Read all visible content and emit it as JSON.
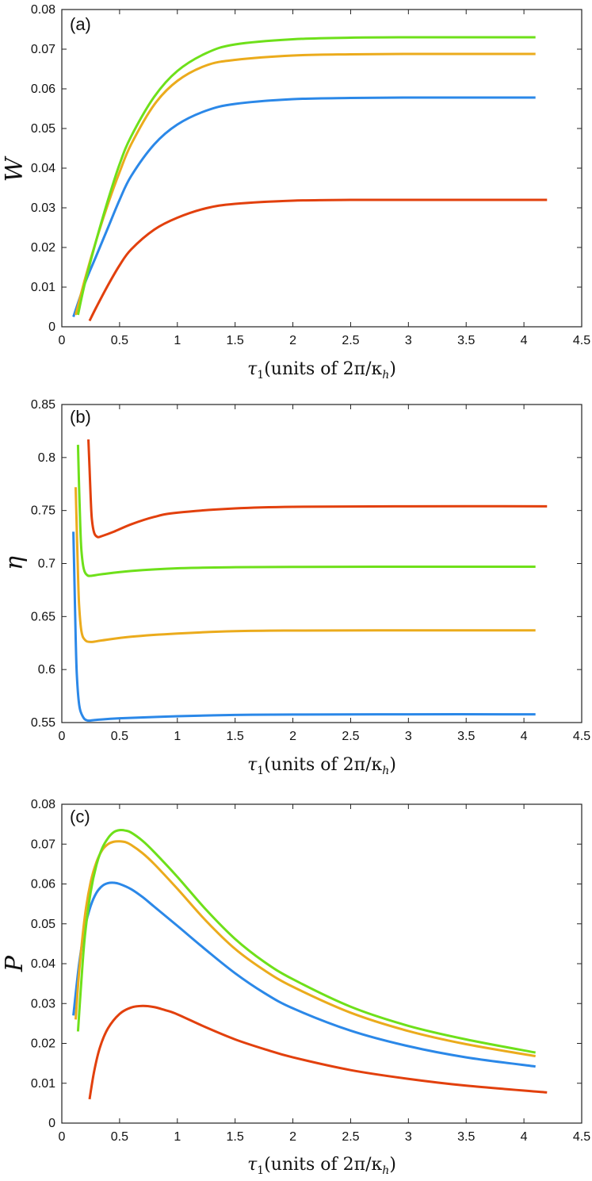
{
  "x_axis_label": {
    "prefix": "τ",
    "subscript": "1",
    "middle": "(units of 2π/κ",
    "sub_h": "h",
    "suffix": ")"
  },
  "colors": {
    "blue": "#2b88e8",
    "orange": "#ebab1c",
    "green": "#6ee01a",
    "red": "#e2400d",
    "axis": "#222222"
  },
  "chart_data": [
    {
      "type": "line",
      "panel_label": "(a)",
      "ylabel": "W",
      "xlim": [
        0,
        4.5
      ],
      "ylim": [
        0,
        0.08
      ],
      "xticks": [
        "0",
        "0.5",
        "1",
        "1.5",
        "2",
        "2.5",
        "3",
        "3.5",
        "4",
        "4.5"
      ],
      "yticks": [
        "0",
        "0.01",
        "0.02",
        "0.03",
        "0.04",
        "0.05",
        "0.06",
        "0.07",
        "0.08"
      ],
      "series": [
        {
          "color": "blue",
          "x": [
            0.1,
            0.2,
            0.3,
            0.4,
            0.5,
            0.6,
            0.8,
            1.0,
            1.25,
            1.5,
            2.0,
            2.5,
            3.0,
            3.5,
            4.1
          ],
          "y": [
            0.0025,
            0.011,
            0.018,
            0.025,
            0.032,
            0.038,
            0.046,
            0.051,
            0.0545,
            0.0562,
            0.0574,
            0.0577,
            0.0578,
            0.0578,
            0.0578
          ]
        },
        {
          "color": "orange",
          "x": [
            0.12,
            0.2,
            0.3,
            0.4,
            0.5,
            0.6,
            0.8,
            1.0,
            1.25,
            1.5,
            2.0,
            2.5,
            3.0,
            3.5,
            4.1
          ],
          "y": [
            0.003,
            0.012,
            0.022,
            0.031,
            0.039,
            0.046,
            0.056,
            0.062,
            0.0659,
            0.0673,
            0.0684,
            0.0687,
            0.0688,
            0.0688,
            0.0688
          ]
        },
        {
          "color": "green",
          "x": [
            0.14,
            0.2,
            0.3,
            0.4,
            0.5,
            0.6,
            0.8,
            1.0,
            1.25,
            1.5,
            2.0,
            2.5,
            3.0,
            3.5,
            4.1
          ],
          "y": [
            0.003,
            0.011,
            0.022,
            0.032,
            0.041,
            0.048,
            0.058,
            0.0645,
            0.069,
            0.0712,
            0.0725,
            0.0729,
            0.073,
            0.073,
            0.073
          ]
        },
        {
          "color": "red",
          "x": [
            0.24,
            0.3,
            0.4,
            0.5,
            0.6,
            0.8,
            1.0,
            1.25,
            1.5,
            2.0,
            2.5,
            3.0,
            3.5,
            4.2
          ],
          "y": [
            0.0015,
            0.005,
            0.0105,
            0.0155,
            0.0195,
            0.0245,
            0.0275,
            0.0299,
            0.031,
            0.0318,
            0.032,
            0.032,
            0.032,
            0.032
          ]
        }
      ]
    },
    {
      "type": "line",
      "panel_label": "(b)",
      "ylabel": "η",
      "xlim": [
        0,
        4.5
      ],
      "ylim": [
        0.55,
        0.85
      ],
      "xticks": [
        "0",
        "0.5",
        "1",
        "1.5",
        "2",
        "2.5",
        "3",
        "3.5",
        "4",
        "4.5"
      ],
      "yticks": [
        "0.55",
        "0.6",
        "0.65",
        "0.7",
        "0.75",
        "0.8",
        "0.85"
      ],
      "series": [
        {
          "color": "blue",
          "x": [
            0.1,
            0.11,
            0.12,
            0.13,
            0.15,
            0.18,
            0.22,
            0.3,
            0.5,
            1.0,
            1.5,
            2.0,
            3.0,
            4.1
          ],
          "y": [
            0.73,
            0.68,
            0.63,
            0.595,
            0.567,
            0.556,
            0.552,
            0.5525,
            0.554,
            0.556,
            0.5572,
            0.5576,
            0.5578,
            0.5578
          ]
        },
        {
          "color": "orange",
          "x": [
            0.12,
            0.13,
            0.14,
            0.15,
            0.17,
            0.2,
            0.25,
            0.35,
            0.6,
            1.0,
            1.5,
            2.0,
            3.0,
            4.1
          ],
          "y": [
            0.772,
            0.73,
            0.69,
            0.66,
            0.636,
            0.628,
            0.626,
            0.6275,
            0.631,
            0.634,
            0.6362,
            0.6368,
            0.637,
            0.637
          ]
        },
        {
          "color": "green",
          "x": [
            0.14,
            0.15,
            0.16,
            0.17,
            0.19,
            0.22,
            0.26,
            0.35,
            0.6,
            1.0,
            1.5,
            2.0,
            3.0,
            4.1
          ],
          "y": [
            0.812,
            0.77,
            0.735,
            0.712,
            0.695,
            0.689,
            0.6885,
            0.69,
            0.693,
            0.6955,
            0.6965,
            0.6968,
            0.697,
            0.697
          ]
        },
        {
          "color": "red",
          "x": [
            0.23,
            0.24,
            0.25,
            0.26,
            0.28,
            0.31,
            0.35,
            0.45,
            0.6,
            0.8,
            1.0,
            1.5,
            2.0,
            3.0,
            4.2
          ],
          "y": [
            0.817,
            0.79,
            0.762,
            0.742,
            0.729,
            0.725,
            0.726,
            0.73,
            0.737,
            0.744,
            0.748,
            0.752,
            0.7535,
            0.754,
            0.754
          ]
        }
      ]
    },
    {
      "type": "line",
      "panel_label": "(c)",
      "ylabel": "P",
      "xlim": [
        0,
        4.5
      ],
      "ylim": [
        0,
        0.08
      ],
      "xticks": [
        "0",
        "0.5",
        "1",
        "1.5",
        "2",
        "2.5",
        "3",
        "3.5",
        "4",
        "4.5"
      ],
      "yticks": [
        "0",
        "0.01",
        "0.02",
        "0.03",
        "0.04",
        "0.05",
        "0.06",
        "0.07",
        "0.08"
      ],
      "series": [
        {
          "color": "blue",
          "x": [
            0.1,
            0.15,
            0.2,
            0.25,
            0.3,
            0.35,
            0.4,
            0.45,
            0.5,
            0.6,
            0.7,
            0.8,
            1.0,
            1.25,
            1.5,
            1.75,
            2.0,
            2.5,
            3.0,
            3.5,
            4.1
          ],
          "y": [
            0.027,
            0.04,
            0.049,
            0.0545,
            0.0578,
            0.0595,
            0.0602,
            0.0603,
            0.06,
            0.0587,
            0.0567,
            0.0543,
            0.0495,
            0.0434,
            0.0376,
            0.0327,
            0.0288,
            0.0232,
            0.0193,
            0.0165,
            0.0142
          ]
        },
        {
          "color": "orange",
          "x": [
            0.12,
            0.15,
            0.2,
            0.25,
            0.3,
            0.35,
            0.4,
            0.45,
            0.5,
            0.55,
            0.6,
            0.7,
            0.8,
            1.0,
            1.25,
            1.5,
            1.75,
            2.0,
            2.5,
            3.0,
            3.5,
            4.1
          ],
          "y": [
            0.026,
            0.038,
            0.052,
            0.0605,
            0.0655,
            0.0685,
            0.07,
            0.0706,
            0.0707,
            0.0705,
            0.0698,
            0.0677,
            0.065,
            0.0588,
            0.0507,
            0.0437,
            0.0384,
            0.0342,
            0.0277,
            0.0231,
            0.0198,
            0.0168
          ]
        },
        {
          "color": "green",
          "x": [
            0.14,
            0.17,
            0.2,
            0.25,
            0.3,
            0.35,
            0.4,
            0.45,
            0.5,
            0.55,
            0.6,
            0.7,
            0.8,
            1.0,
            1.25,
            1.5,
            1.75,
            2.0,
            2.5,
            3.0,
            3.5,
            4.1
          ],
          "y": [
            0.023,
            0.036,
            0.047,
            0.058,
            0.0648,
            0.069,
            0.0715,
            0.073,
            0.0735,
            0.0734,
            0.0729,
            0.0708,
            0.068,
            0.0618,
            0.0535,
            0.0462,
            0.0405,
            0.0361,
            0.0292,
            0.0244,
            0.021,
            0.0177
          ]
        },
        {
          "color": "red",
          "x": [
            0.24,
            0.28,
            0.33,
            0.4,
            0.5,
            0.6,
            0.7,
            0.8,
            0.9,
            1.0,
            1.25,
            1.5,
            1.75,
            2.0,
            2.5,
            3.0,
            3.5,
            4.2
          ],
          "y": [
            0.006,
            0.013,
            0.019,
            0.0238,
            0.0274,
            0.029,
            0.0294,
            0.0291,
            0.0283,
            0.0273,
            0.024,
            0.021,
            0.0186,
            0.0165,
            0.0133,
            0.0111,
            0.0094,
            0.0077
          ]
        }
      ]
    }
  ]
}
